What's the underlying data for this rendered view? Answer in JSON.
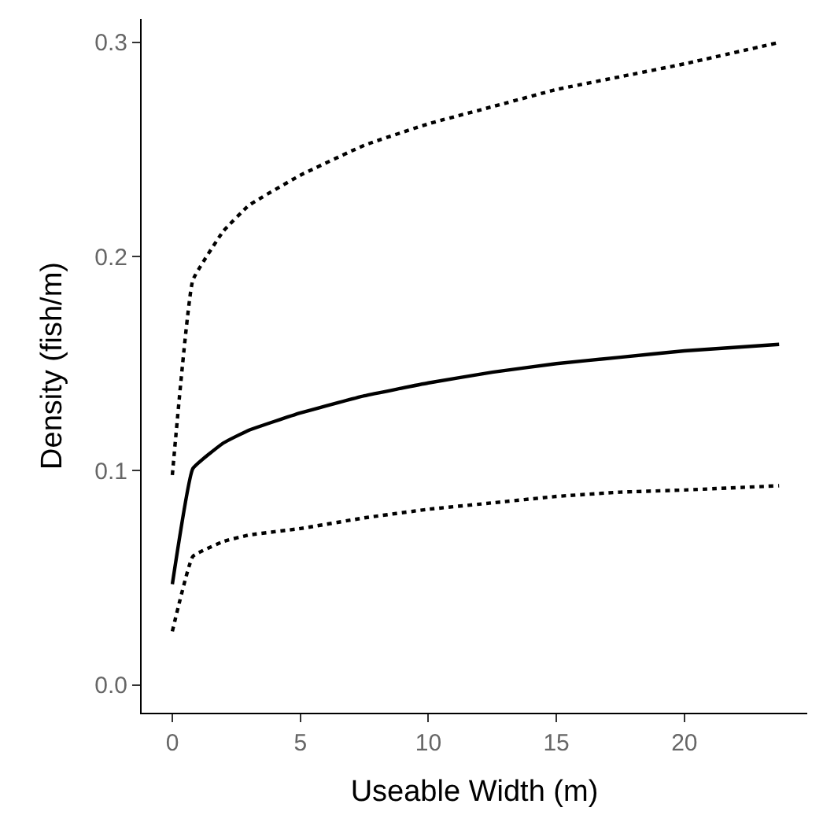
{
  "chart_data": {
    "type": "line",
    "xlabel": "Useable Width (m)",
    "ylabel": "Density (fish/m)",
    "x": [
      0,
      0.8,
      2,
      3,
      5,
      7.5,
      10,
      12.5,
      15,
      17.5,
      20,
      23.7
    ],
    "series": [
      {
        "color": "#000000",
        "line_style": "dotted",
        "values": [
          0.098,
          0.189,
          0.212,
          0.224,
          0.238,
          0.252,
          0.262,
          0.27,
          0.278,
          0.284,
          0.29,
          0.3
        ]
      },
      {
        "color": "#000000",
        "line_style": "solid",
        "values": [
          0.047,
          0.101,
          0.113,
          0.119,
          0.127,
          0.135,
          0.141,
          0.146,
          0.15,
          0.153,
          0.156,
          0.159
        ]
      },
      {
        "color": "#000000",
        "line_style": "dotted",
        "values": [
          0.025,
          0.06,
          0.067,
          0.07,
          0.073,
          0.078,
          0.082,
          0.085,
          0.088,
          0.09,
          0.091,
          0.093
        ]
      }
    ],
    "xlim": [
      -1.2,
      24.8
    ],
    "ylim": [
      -0.013,
      0.311
    ],
    "xticks": [
      0,
      5,
      10,
      15,
      20
    ],
    "yticks": [
      {
        "value": 0,
        "label": "0.0"
      },
      {
        "value": 0.1,
        "label": "0.1"
      },
      {
        "value": 0.2,
        "label": "0.2"
      },
      {
        "value": 0.3,
        "label": "0.3"
      }
    ],
    "marker": "none"
  }
}
